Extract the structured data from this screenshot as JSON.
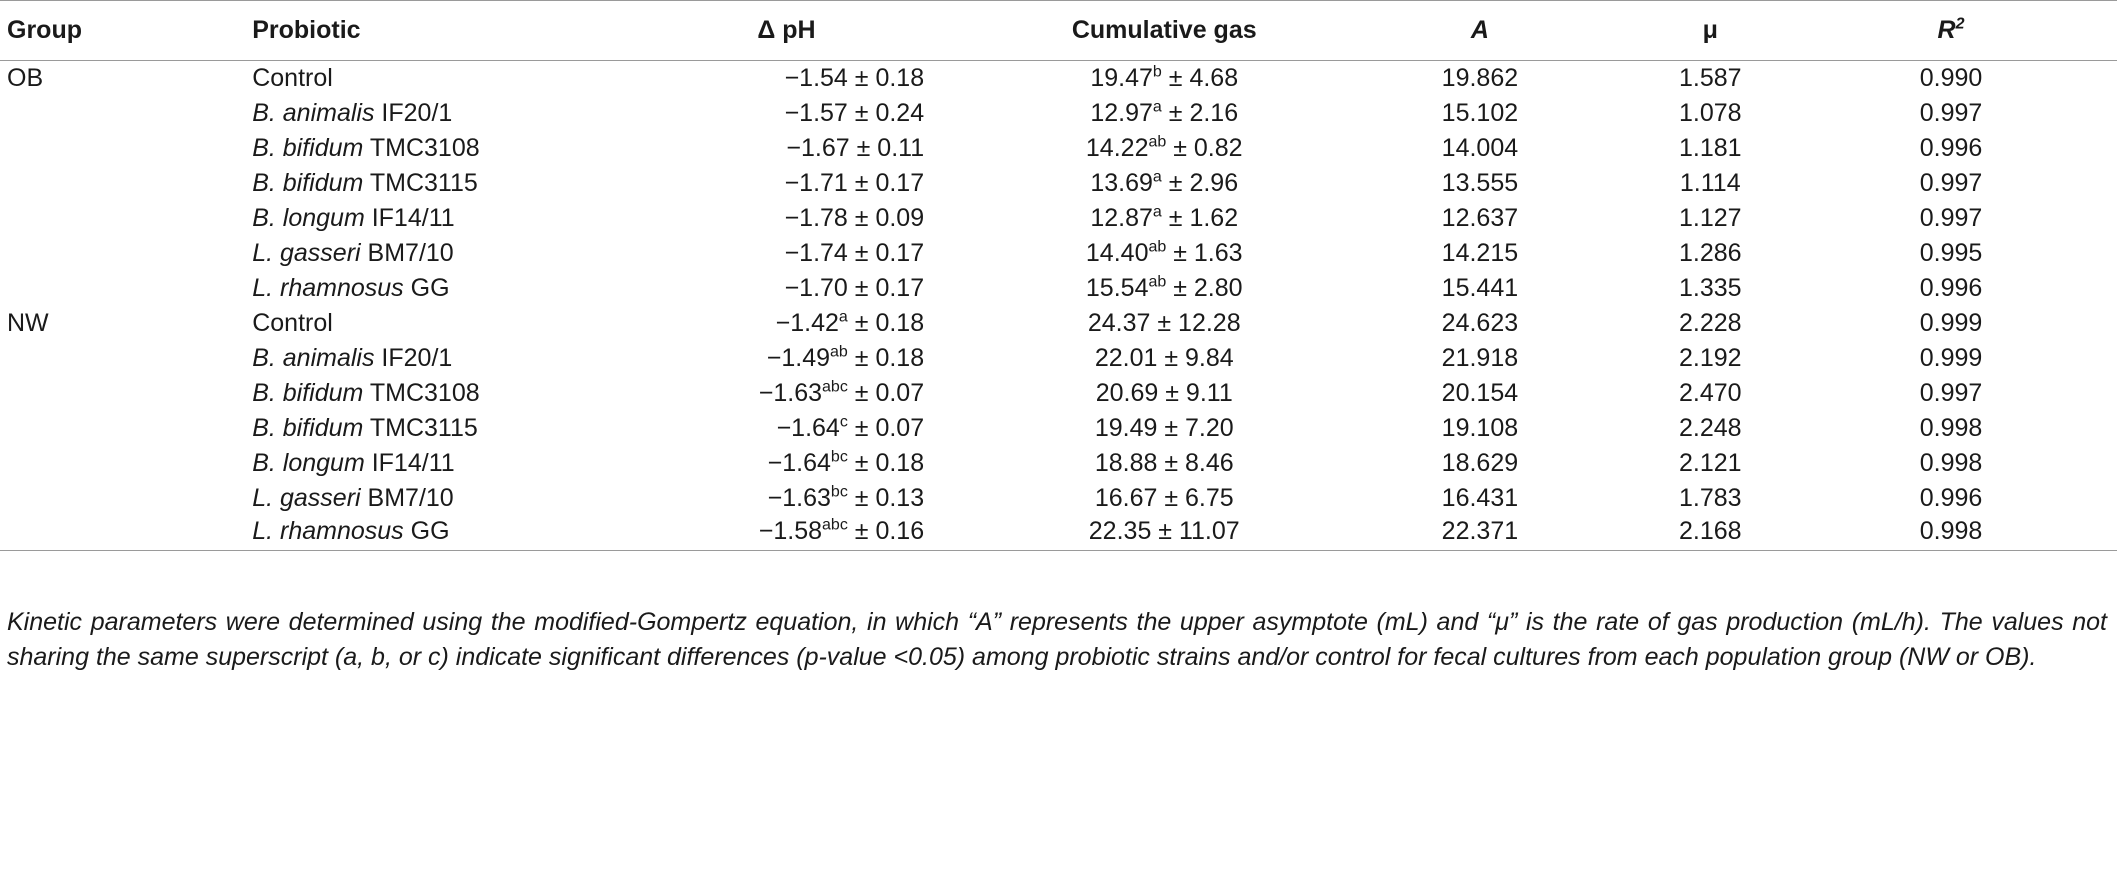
{
  "columns": {
    "group": "Group",
    "probiotic": "Probiotic",
    "dph": "Δ pH",
    "gas": "Cumulative gas",
    "a": "A",
    "mu": "μ",
    "r2_base": "R",
    "r2_sup": "2"
  },
  "rows": [
    {
      "group": "OB",
      "genus": "",
      "strain": "Control",
      "ph": "−1.54",
      "ph_sup": "",
      "ph_sd": "± 0.18",
      "gas": "19.47",
      "gas_sup": "b",
      "gas_sd": "± 4.68",
      "a": "19.862",
      "mu": "1.587",
      "r2": "0.990"
    },
    {
      "group": "",
      "genus": "B. animalis",
      "strain": "IF20/1",
      "ph": "−1.57",
      "ph_sup": "",
      "ph_sd": "± 0.24",
      "gas": "12.97",
      "gas_sup": "a",
      "gas_sd": "± 2.16",
      "a": "15.102",
      "mu": "1.078",
      "r2": "0.997"
    },
    {
      "group": "",
      "genus": "B. bifidum",
      "strain": "TMC3108",
      "ph": "−1.67",
      "ph_sup": "",
      "ph_sd": "± 0.11",
      "gas": "14.22",
      "gas_sup": "ab",
      "gas_sd": "± 0.82",
      "a": "14.004",
      "mu": "1.181",
      "r2": "0.996"
    },
    {
      "group": "",
      "genus": "B. bifidum",
      "strain": "TMC3115",
      "ph": "−1.71",
      "ph_sup": "",
      "ph_sd": "± 0.17",
      "gas": "13.69",
      "gas_sup": "a",
      "gas_sd": "± 2.96",
      "a": "13.555",
      "mu": "1.114",
      "r2": "0.997"
    },
    {
      "group": "",
      "genus": "B. longum",
      "strain": "IF14/11",
      "ph": "−1.78",
      "ph_sup": "",
      "ph_sd": "± 0.09",
      "gas": "12.87",
      "gas_sup": "a",
      "gas_sd": "± 1.62",
      "a": "12.637",
      "mu": "1.127",
      "r2": "0.997"
    },
    {
      "group": "",
      "genus": "L. gasseri",
      "strain": "BM7/10",
      "ph": "−1.74",
      "ph_sup": "",
      "ph_sd": "± 0.17",
      "gas": "14.40",
      "gas_sup": "ab",
      "gas_sd": "± 1.63",
      "a": "14.215",
      "mu": "1.286",
      "r2": "0.995"
    },
    {
      "group": "",
      "genus": "L. rhamnosus",
      "strain": "GG",
      "ph": "−1.70",
      "ph_sup": "",
      "ph_sd": "± 0.17",
      "gas": "15.54",
      "gas_sup": "ab",
      "gas_sd": "± 2.80",
      "a": "15.441",
      "mu": "1.335",
      "r2": "0.996"
    },
    {
      "group": "NW",
      "genus": "",
      "strain": "Control",
      "ph": "−1.42",
      "ph_sup": "a",
      "ph_sd": "± 0.18",
      "gas": "24.37",
      "gas_sup": "",
      "gas_sd": "± 12.28",
      "a": "24.623",
      "mu": "2.228",
      "r2": "0.999"
    },
    {
      "group": "",
      "genus": "B. animalis",
      "strain": "IF20/1",
      "ph": "−1.49",
      "ph_sup": "ab",
      "ph_sd": "± 0.18",
      "gas": "22.01",
      "gas_sup": "",
      "gas_sd": "± 9.84",
      "a": "21.918",
      "mu": "2.192",
      "r2": "0.999"
    },
    {
      "group": "",
      "genus": "B. bifidum",
      "strain": "TMC3108",
      "ph": "−1.63",
      "ph_sup": "abc",
      "ph_sd": "± 0.07",
      "gas": "20.69",
      "gas_sup": "",
      "gas_sd": "± 9.11",
      "a": "20.154",
      "mu": "2.470",
      "r2": "0.997"
    },
    {
      "group": "",
      "genus": "B. bifidum",
      "strain": "TMC3115",
      "ph": "−1.64",
      "ph_sup": "c",
      "ph_sd": "± 0.07",
      "gas": "19.49",
      "gas_sup": "",
      "gas_sd": "± 7.20",
      "a": "19.108",
      "mu": "2.248",
      "r2": "0.998"
    },
    {
      "group": "",
      "genus": "B. longum",
      "strain": "IF14/11",
      "ph": "−1.64",
      "ph_sup": "bc",
      "ph_sd": "± 0.18",
      "gas": "18.88",
      "gas_sup": "",
      "gas_sd": "± 8.46",
      "a": "18.629",
      "mu": "2.121",
      "r2": "0.998"
    },
    {
      "group": "",
      "genus": "L. gasseri",
      "strain": "BM7/10",
      "ph": "−1.63",
      "ph_sup": "bc",
      "ph_sd": "± 0.13",
      "gas": "16.67",
      "gas_sup": "",
      "gas_sd": "± 6.75",
      "a": "16.431",
      "mu": "1.783",
      "r2": "0.996"
    },
    {
      "group": "",
      "genus": "L. rhamnosus",
      "strain": "GG",
      "ph": "−1.58",
      "ph_sup": "abc",
      "ph_sd": "± 0.16",
      "gas": "22.35",
      "gas_sup": "",
      "gas_sd": "± 11.07",
      "a": "22.371",
      "mu": "2.168",
      "r2": "0.998"
    }
  ],
  "footnote": "Kinetic parameters were determined using the modified-Gompertz equation, in which “A” represents the upper asymptote (mL) and “μ” is the rate of gas production (mL/h). The values not sharing the same superscript (a, b, or c) indicate significant differences (p-value <0.05) among probiotic strains and/or control for fecal cultures from each population group (NW or OB)."
}
